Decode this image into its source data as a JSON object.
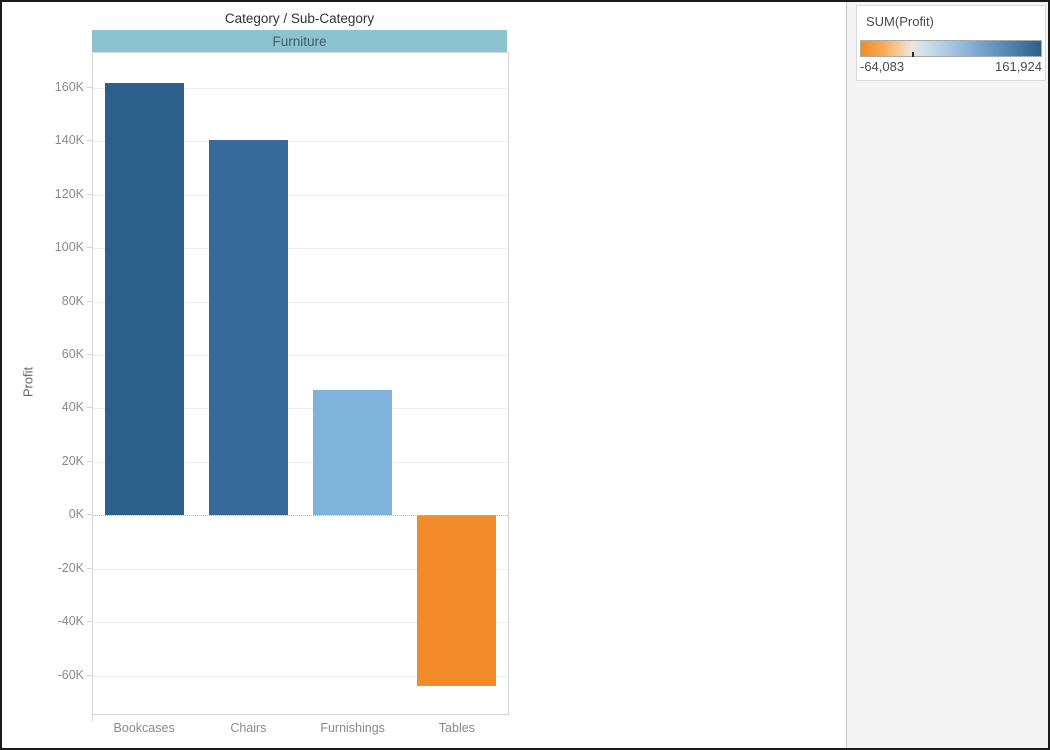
{
  "window": {
    "background": "#ffffff",
    "border_color": "#1b1b1b",
    "panel_background": "#f4f4f4"
  },
  "chart": {
    "title": "Category / Sub-Category",
    "category_header": {
      "label": "Furniture",
      "background": "#8bc3cf",
      "text_color": "#3f5d68"
    },
    "ylabel": "Profit"
  },
  "legend": {
    "title": "SUM(Profit)",
    "min_label": "-64,083",
    "max_label": "161,924",
    "negative_color": "#f28c28",
    "positive_color": "#2d5f8b",
    "zero_tick_position_pct": 28.4
  },
  "chart_data": {
    "type": "bar",
    "title": "Category / Sub-Category",
    "categories": [
      "Bookcases",
      "Chairs",
      "Furnishings",
      "Tables"
    ],
    "values": [
      161924,
      140400,
      47000,
      -64083
    ],
    "bar_colors": [
      "#2d5f8b",
      "#38699b",
      "#7fb3da",
      "#f28c28"
    ],
    "xlabel": "",
    "ylabel": "Profit",
    "ylim": [
      -74400,
      173000
    ],
    "yticks": [
      -60000,
      -40000,
      -20000,
      0,
      20000,
      40000,
      60000,
      80000,
      100000,
      120000,
      140000,
      160000
    ],
    "ytick_labels": [
      "-60K",
      "-40K",
      "-20K",
      "0K",
      "20K",
      "40K",
      "60K",
      "80K",
      "100K",
      "120K",
      "140K",
      "160K"
    ],
    "grid": true,
    "zero_line": "dotted",
    "legend_position": "right-panel-top",
    "color_encoding": "SUM(Profit) diverging orange-blue"
  }
}
